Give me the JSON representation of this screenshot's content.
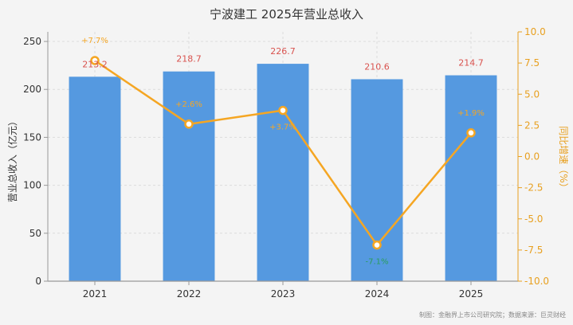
{
  "chart_data": {
    "type": "bar",
    "title": "宁波建工 2025年营业总收入",
    "categories": [
      "2021",
      "2022",
      "2023",
      "2024",
      "2025"
    ],
    "series": [
      {
        "kind": "bar",
        "axis": "left",
        "values": [
          213.2,
          218.7,
          226.7,
          210.6,
          214.7
        ],
        "labels": [
          "213.2",
          "218.7",
          "226.7",
          "210.6",
          "214.7"
        ]
      },
      {
        "kind": "line",
        "axis": "right",
        "values": [
          7.7,
          2.6,
          3.7,
          -7.1,
          1.9
        ],
        "labels": [
          "+7.7%",
          "+2.6%",
          "+3.7%",
          "-7.1%",
          "+1.9%"
        ]
      }
    ],
    "ylabel": "营业总收入（亿元）",
    "y2label": "同比增速（%）",
    "ylim": [
      0,
      260
    ],
    "y2lim": [
      -10,
      10
    ],
    "yticks": [
      "0",
      "50",
      "100",
      "150",
      "200",
      "250"
    ],
    "y2ticks": [
      "-10.0",
      "-7.5",
      "-5.0",
      "-2.5",
      "0.0",
      "2.5",
      "5.0",
      "7.5",
      "10.0"
    ],
    "grid": true,
    "footnote": "制图：金融界上市公司研究院；数据来源：巨灵财经",
    "colors": {
      "bar": "#5599e0",
      "line": "#f5a623",
      "bar_label": "#d9534f",
      "neg_label": "#2a9d5c",
      "title": "#333333",
      "axis_text": "#333333",
      "y2_text": "#e8a020",
      "grid": "#dcdcdc",
      "footnote": "#888888"
    }
  }
}
